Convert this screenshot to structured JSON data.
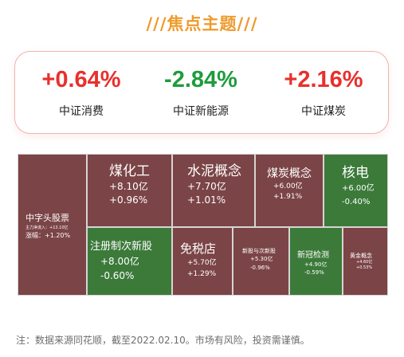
{
  "title": "///焦点主题///",
  "indices": [
    {
      "value": "+0.64%",
      "name": "中证消费"
    },
    {
      "value": "-2.84%",
      "name": "中证新能源"
    },
    {
      "value": "+2.16%",
      "name": "中证煤炭"
    }
  ],
  "colors": {
    "up": "#e8302c",
    "down": "#1e9c3c",
    "tile_up": "#7b4446",
    "tile_down": "#3c7a3a",
    "title": "#ee9a2b"
  },
  "treemap": {
    "tiles": [
      {
        "name": "中字头股票",
        "flow": "主力净流入：+13.10亿",
        "change": "涨幅：+1.20%"
      },
      {
        "name": "煤化工",
        "flow": "+8.10亿",
        "change": "+0.96%"
      },
      {
        "name": "水泥概念",
        "flow": "+7.70亿",
        "change": "+1.01%"
      },
      {
        "name": "煤炭概念",
        "flow": "+6.00亿",
        "change": "+1.91%"
      },
      {
        "name": "核电",
        "flow": "+6.00亿",
        "change": "-0.40%"
      },
      {
        "name": "注册制次新股",
        "flow": "+8.00亿",
        "change": "-0.60%"
      },
      {
        "name": "免税店",
        "flow": "+5.70亿",
        "change": "+1.29%"
      },
      {
        "name": "新股与次新股",
        "flow": "+5.30亿",
        "change": "-0.96%"
      },
      {
        "name": "新冠检测",
        "flow": "+4.90亿",
        "change": "-0.59%"
      },
      {
        "name": "黄金概念",
        "flow": "+4.60亿",
        "change": "+0.53%"
      }
    ]
  },
  "footnote": "注：数据来源同花顺，截至2022.02.10。市场有风险，投资需谨慎。"
}
